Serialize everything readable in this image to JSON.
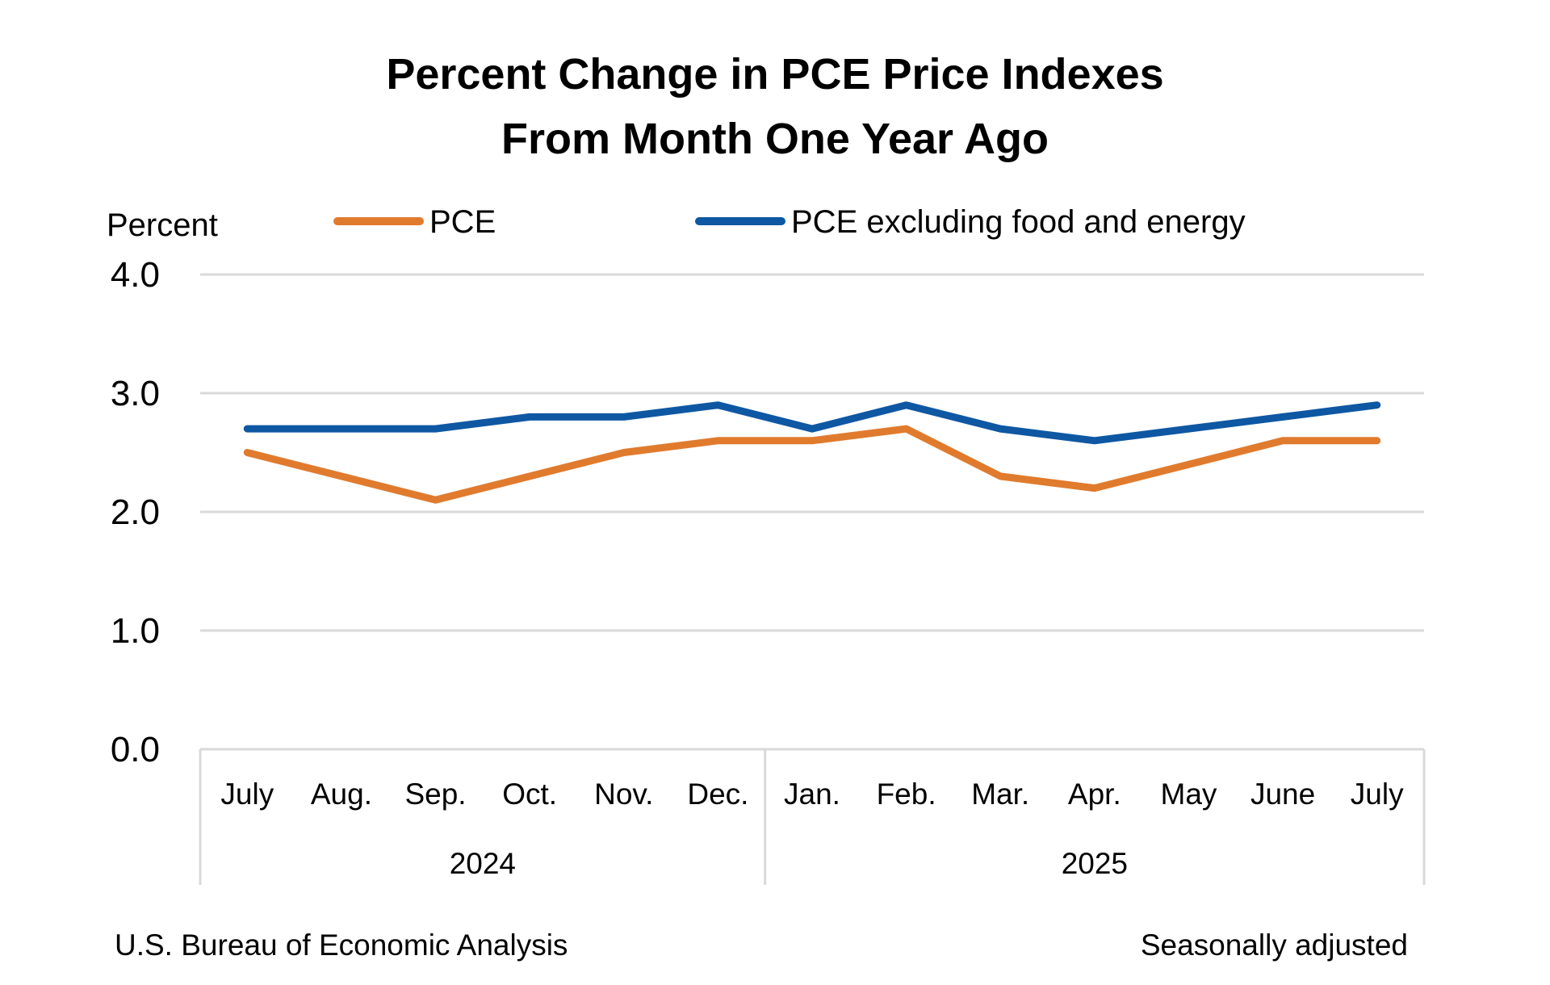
{
  "chart_data": {
    "type": "line",
    "title": [
      "Percent Change in PCE Price Indexes",
      "From Month One Year Ago"
    ],
    "unit_label": "Percent",
    "categories": [
      "July",
      "Aug.",
      "Sep.",
      "Oct.",
      "Nov.",
      "Dec.",
      "Jan.",
      "Feb.",
      "Mar.",
      "Apr.",
      "May",
      "June",
      "July"
    ],
    "category_groups": [
      {
        "label": "2024",
        "count": 6
      },
      {
        "label": "2025",
        "count": 7
      }
    ],
    "series": [
      {
        "name": "PCE",
        "color": "#e07b2e",
        "values": [
          2.5,
          2.3,
          2.1,
          2.3,
          2.5,
          2.6,
          2.6,
          2.7,
          2.3,
          2.2,
          2.4,
          2.6,
          2.6
        ]
      },
      {
        "name": "PCE excluding food and energy",
        "color": "#0e57a3",
        "values": [
          2.7,
          2.7,
          2.7,
          2.8,
          2.8,
          2.9,
          2.7,
          2.9,
          2.7,
          2.6,
          2.7,
          2.8,
          2.9
        ]
      }
    ],
    "ylim": [
      0,
      4
    ],
    "yticks": [
      "0.0",
      "1.0",
      "2.0",
      "3.0",
      "4.0"
    ],
    "grid": true,
    "legend_position": "top",
    "footer": {
      "source": "U.S. Bureau of Economic Analysis",
      "note": "Seasonally adjusted"
    }
  }
}
